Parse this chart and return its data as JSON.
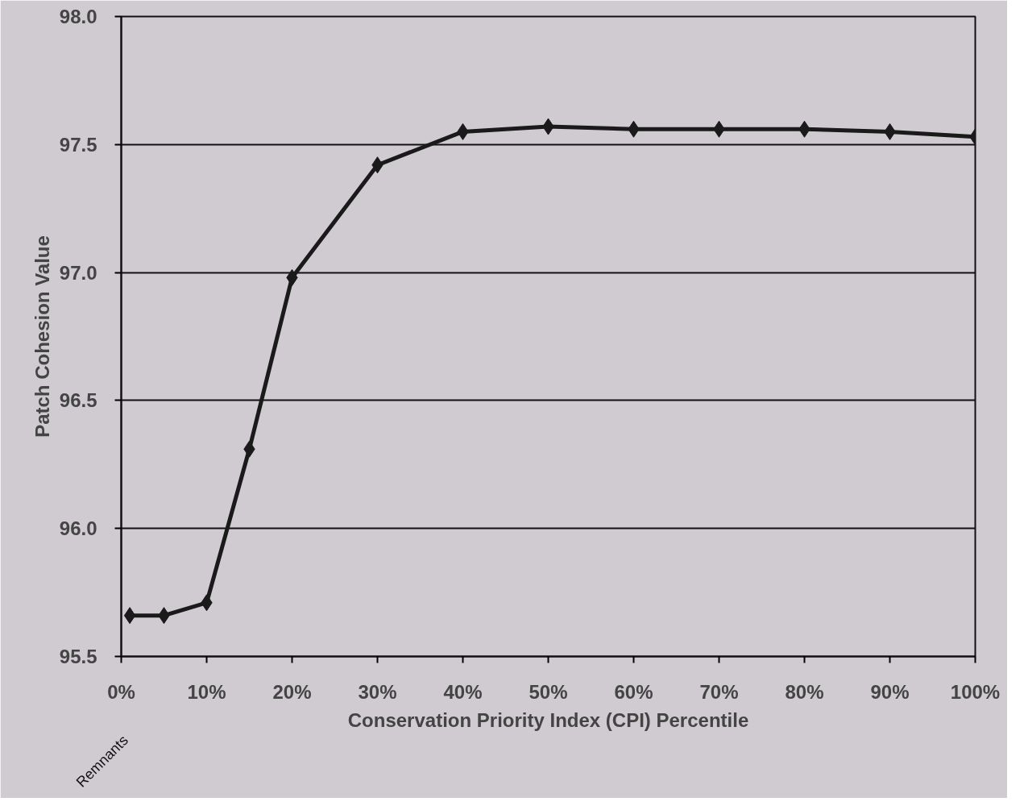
{
  "chart_data": {
    "type": "line",
    "xlabel": "Conservation Priority Index (CPI) Percentile",
    "ylabel": "Patch Cohesion Value",
    "x": [
      1,
      5,
      10,
      15,
      20,
      30,
      40,
      50,
      60,
      70,
      80,
      90,
      100
    ],
    "series": [
      {
        "color": "#1a1a1a",
        "values": [
          95.66,
          95.66,
          95.71,
          96.31,
          96.98,
          97.42,
          97.55,
          97.57,
          97.56,
          97.56,
          97.56,
          97.55,
          97.53
        ]
      }
    ],
    "xlim": [
      0,
      100
    ],
    "xticks": [
      {
        "value": 0,
        "label": "0%"
      },
      {
        "value": 10,
        "label": "10%"
      },
      {
        "value": 20,
        "label": "20%"
      },
      {
        "value": 30,
        "label": "30%"
      },
      {
        "value": 40,
        "label": "40%"
      },
      {
        "value": 50,
        "label": "50%"
      },
      {
        "value": 60,
        "label": "60%"
      },
      {
        "value": 70,
        "label": "70%"
      },
      {
        "value": 80,
        "label": "80%"
      },
      {
        "value": 90,
        "label": "90%"
      },
      {
        "value": 100,
        "label": "100%"
      }
    ],
    "ylim": [
      95.5,
      98.0
    ],
    "yticks": [
      {
        "value": 95.5,
        "label": "95.5"
      },
      {
        "value": 96.0,
        "label": "96.0"
      },
      {
        "value": 96.5,
        "label": "96.5"
      },
      {
        "value": 97.0,
        "label": "97.0"
      },
      {
        "value": 97.5,
        "label": "97.5"
      },
      {
        "value": 98.0,
        "label": "98.0"
      }
    ],
    "annotations": [
      "Remnants"
    ],
    "grid": "y",
    "marker": "diamond",
    "line_style": "solid"
  }
}
